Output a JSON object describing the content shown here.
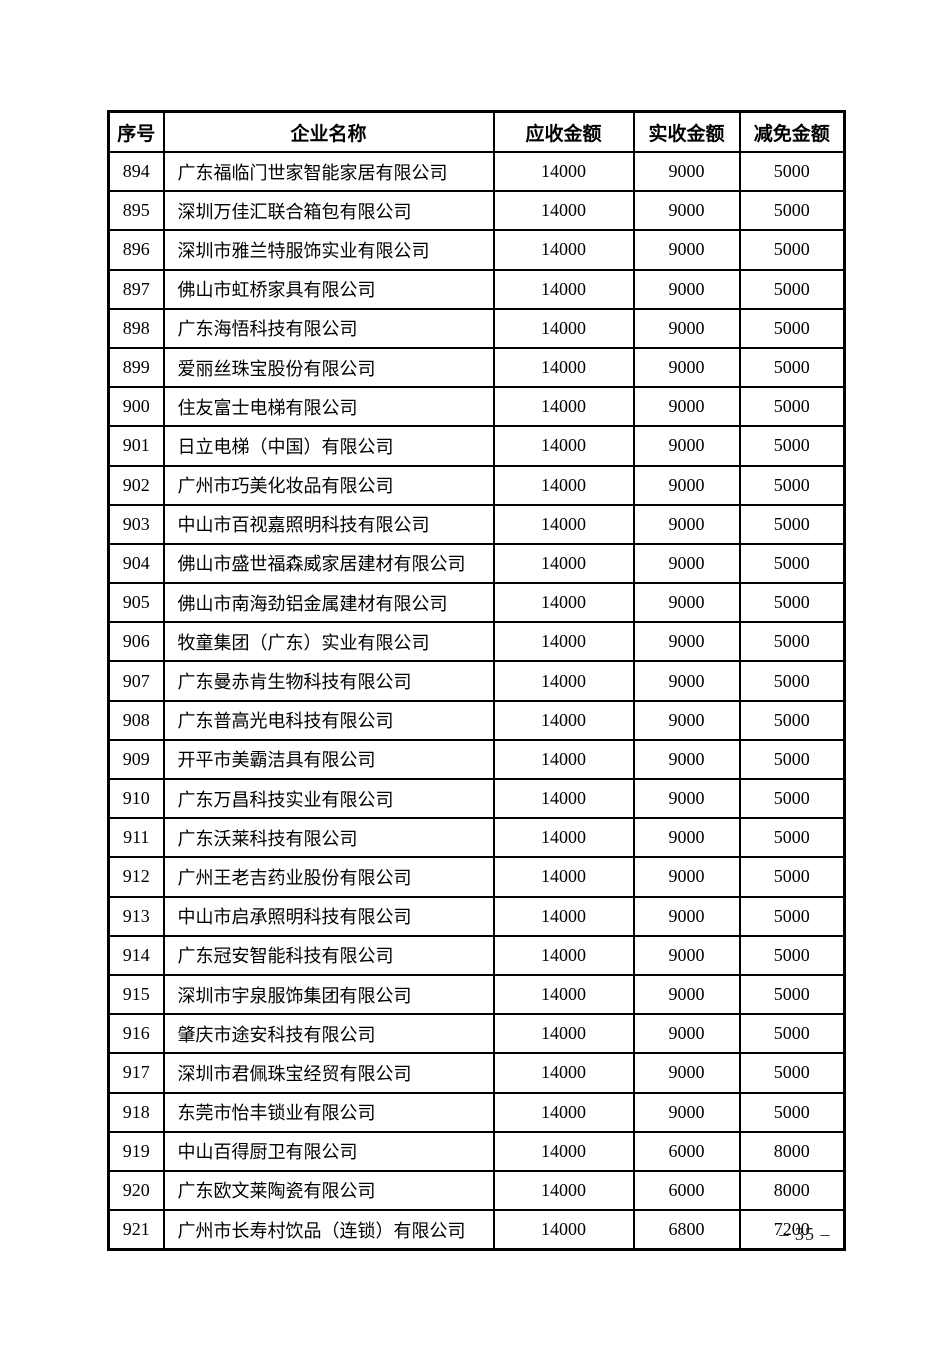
{
  "page": {
    "number_label": "– 35 –"
  },
  "colors": {
    "background": "#ffffff",
    "border": "#000000",
    "text": "#000000"
  },
  "table": {
    "columns": [
      "序号",
      "企业名称",
      "应收金额",
      "实收金额",
      "减免金额"
    ],
    "rows": [
      {
        "no": "894",
        "name": "广东福临门世家智能家居有限公司",
        "receivable": "14000",
        "received": "9000",
        "reduction": "5000"
      },
      {
        "no": "895",
        "name": "深圳万佳汇联合箱包有限公司",
        "receivable": "14000",
        "received": "9000",
        "reduction": "5000"
      },
      {
        "no": "896",
        "name": "深圳市雅兰特服饰实业有限公司",
        "receivable": "14000",
        "received": "9000",
        "reduction": "5000"
      },
      {
        "no": "897",
        "name": "佛山市虹桥家具有限公司",
        "receivable": "14000",
        "received": "9000",
        "reduction": "5000"
      },
      {
        "no": "898",
        "name": "广东海悟科技有限公司",
        "receivable": "14000",
        "received": "9000",
        "reduction": "5000"
      },
      {
        "no": "899",
        "name": "爱丽丝珠宝股份有限公司",
        "receivable": "14000",
        "received": "9000",
        "reduction": "5000"
      },
      {
        "no": "900",
        "name": "住友富士电梯有限公司",
        "receivable": "14000",
        "received": "9000",
        "reduction": "5000"
      },
      {
        "no": "901",
        "name": "日立电梯（中国）有限公司",
        "receivable": "14000",
        "received": "9000",
        "reduction": "5000"
      },
      {
        "no": "902",
        "name": "广州市巧美化妆品有限公司",
        "receivable": "14000",
        "received": "9000",
        "reduction": "5000"
      },
      {
        "no": "903",
        "name": "中山市百视嘉照明科技有限公司",
        "receivable": "14000",
        "received": "9000",
        "reduction": "5000"
      },
      {
        "no": "904",
        "name": "佛山市盛世福森威家居建材有限公司",
        "receivable": "14000",
        "received": "9000",
        "reduction": "5000"
      },
      {
        "no": "905",
        "name": "佛山市南海劲铝金属建材有限公司",
        "receivable": "14000",
        "received": "9000",
        "reduction": "5000"
      },
      {
        "no": "906",
        "name": "牧童集团（广东）实业有限公司",
        "receivable": "14000",
        "received": "9000",
        "reduction": "5000"
      },
      {
        "no": "907",
        "name": "广东曼赤肯生物科技有限公司",
        "receivable": "14000",
        "received": "9000",
        "reduction": "5000"
      },
      {
        "no": "908",
        "name": "广东普高光电科技有限公司",
        "receivable": "14000",
        "received": "9000",
        "reduction": "5000"
      },
      {
        "no": "909",
        "name": "开平市美霸洁具有限公司",
        "receivable": "14000",
        "received": "9000",
        "reduction": "5000"
      },
      {
        "no": "910",
        "name": "广东万昌科技实业有限公司",
        "receivable": "14000",
        "received": "9000",
        "reduction": "5000"
      },
      {
        "no": "911",
        "name": "广东沃莱科技有限公司",
        "receivable": "14000",
        "received": "9000",
        "reduction": "5000"
      },
      {
        "no": "912",
        "name": "广州王老吉药业股份有限公司",
        "receivable": "14000",
        "received": "9000",
        "reduction": "5000"
      },
      {
        "no": "913",
        "name": "中山市启承照明科技有限公司",
        "receivable": "14000",
        "received": "9000",
        "reduction": "5000"
      },
      {
        "no": "914",
        "name": "广东冠安智能科技有限公司",
        "receivable": "14000",
        "received": "9000",
        "reduction": "5000"
      },
      {
        "no": "915",
        "name": "深圳市宇泉服饰集团有限公司",
        "receivable": "14000",
        "received": "9000",
        "reduction": "5000"
      },
      {
        "no": "916",
        "name": "肇庆市途安科技有限公司",
        "receivable": "14000",
        "received": "9000",
        "reduction": "5000"
      },
      {
        "no": "917",
        "name": "深圳市君佩珠宝经贸有限公司",
        "receivable": "14000",
        "received": "9000",
        "reduction": "5000"
      },
      {
        "no": "918",
        "name": "东莞市怡丰锁业有限公司",
        "receivable": "14000",
        "received": "9000",
        "reduction": "5000"
      },
      {
        "no": "919",
        "name": "中山百得厨卫有限公司",
        "receivable": "14000",
        "received": "6000",
        "reduction": "8000"
      },
      {
        "no": "920",
        "name": "广东欧文莱陶瓷有限公司",
        "receivable": "14000",
        "received": "6000",
        "reduction": "8000"
      },
      {
        "no": "921",
        "name": "广州市长寿村饮品（连锁）有限公司",
        "receivable": "14000",
        "received": "6800",
        "reduction": "7200"
      }
    ]
  }
}
